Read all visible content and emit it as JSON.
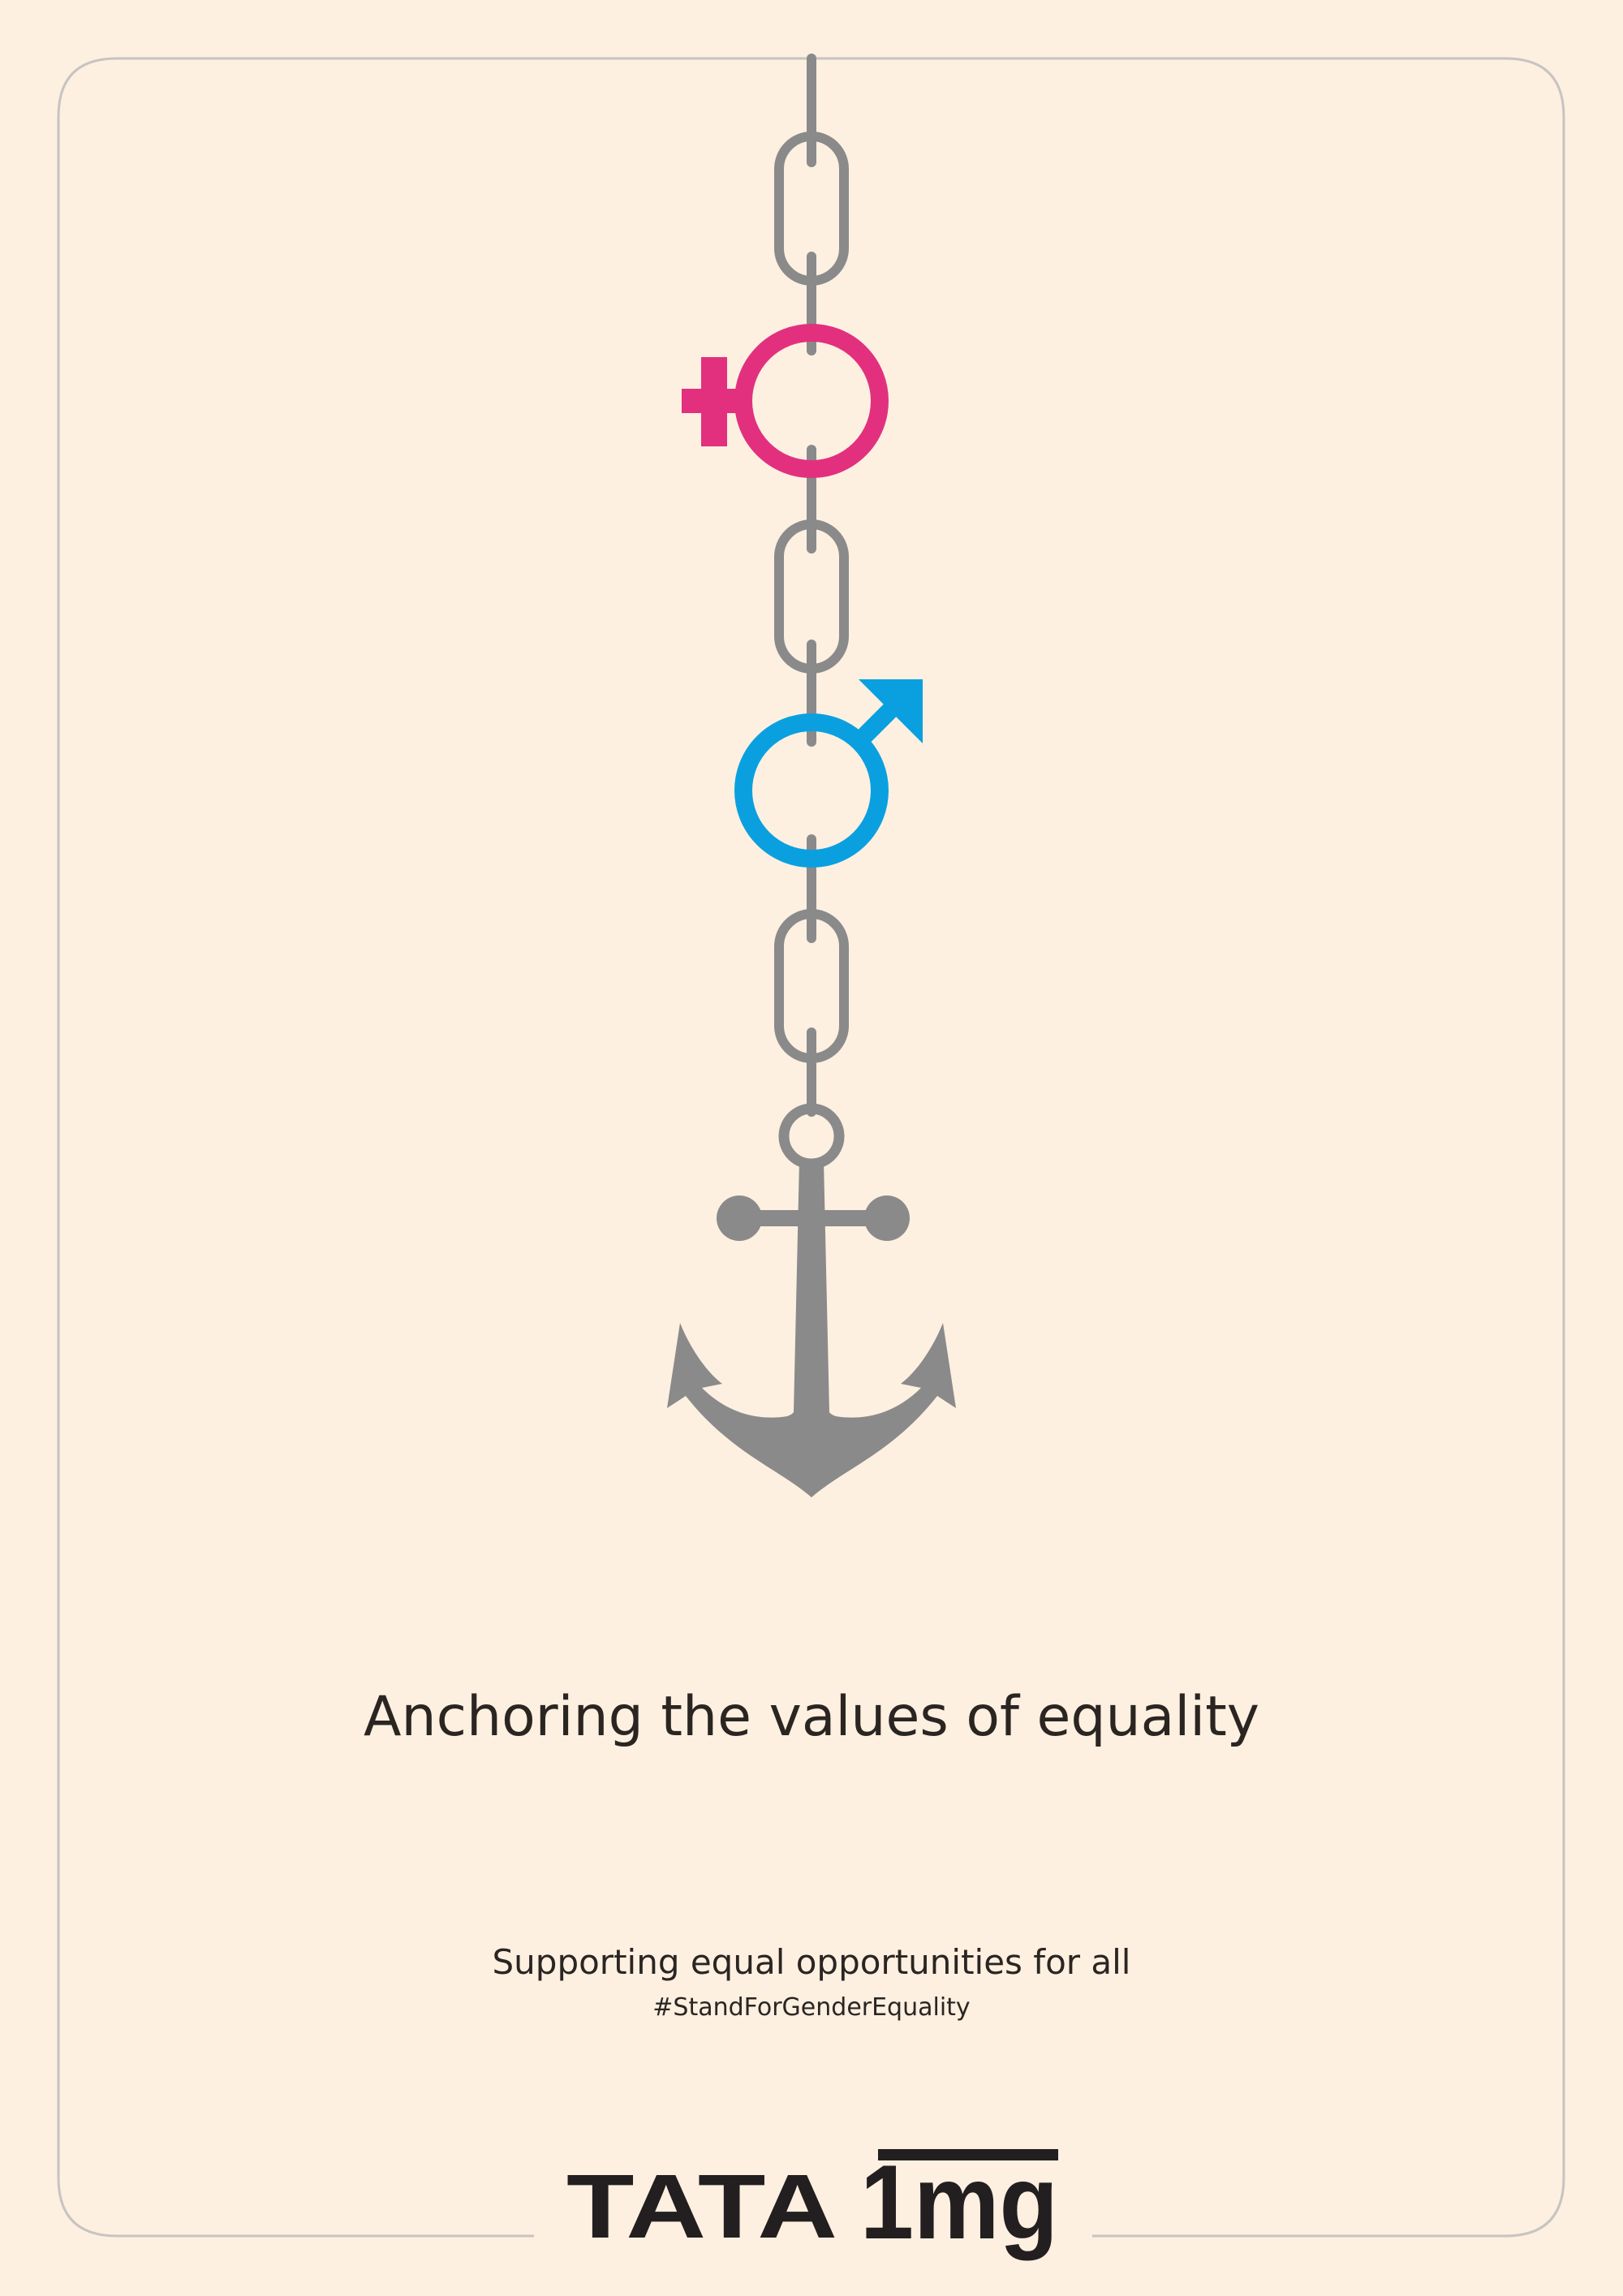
{
  "title": "Anchoring the values of equality",
  "subtitle": "Supporting equal opportunities for all",
  "hashtag": "#StandForGenderEquality",
  "logo": {
    "brand": "TATA",
    "product": "1mg"
  }
}
